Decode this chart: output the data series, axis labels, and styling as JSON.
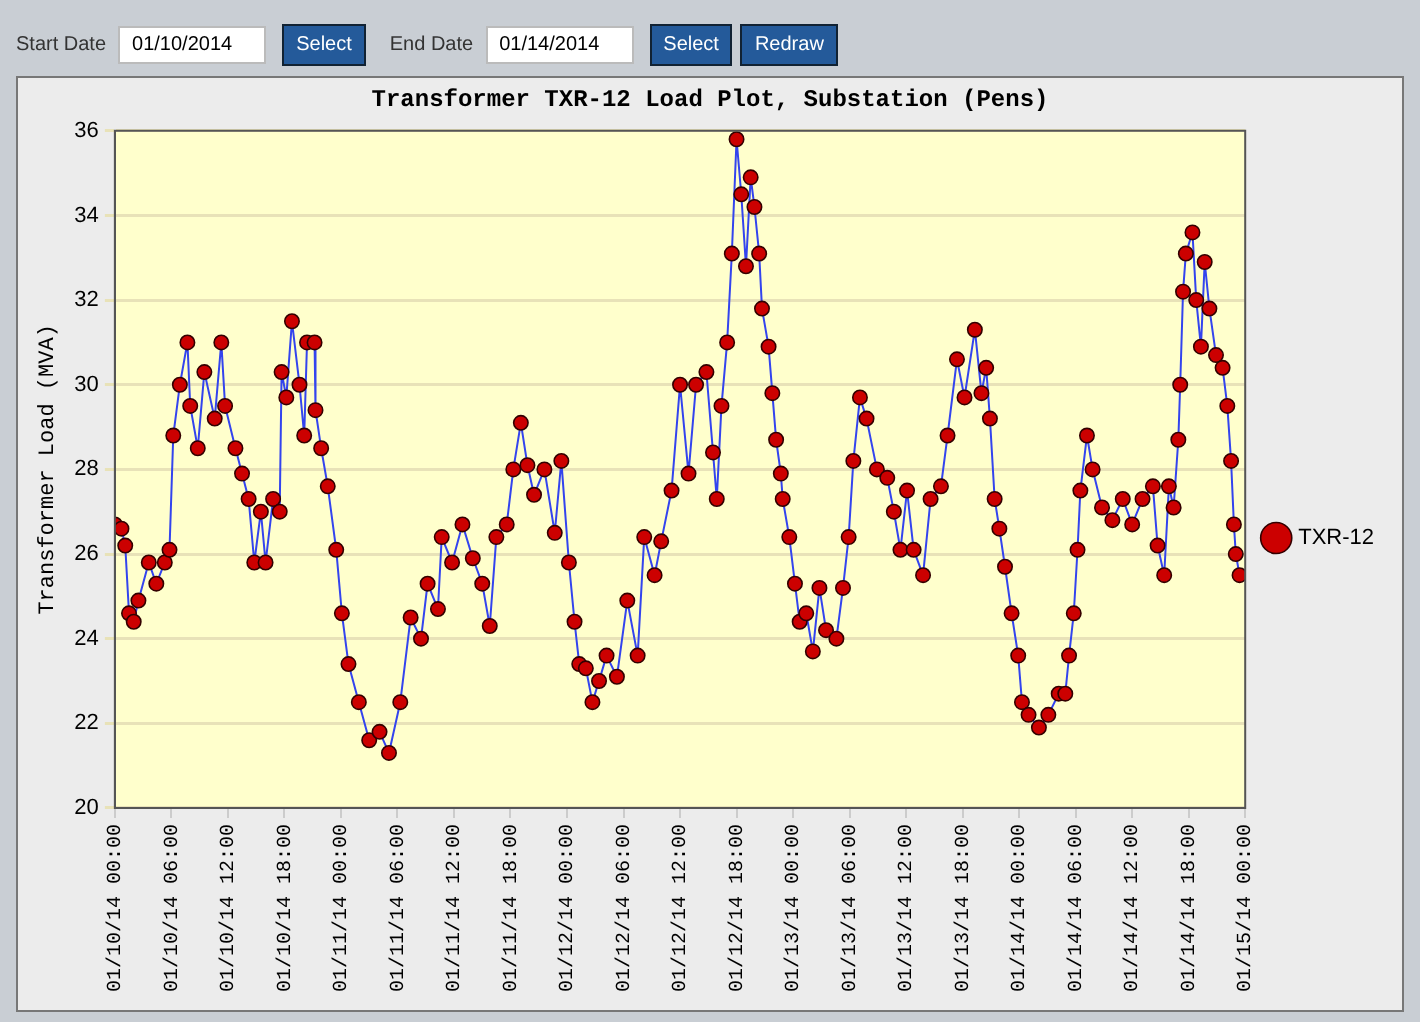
{
  "chart_data": {
    "type": "line",
    "title": "Transformer TXR-12 Load Plot, Substation (Pens)",
    "ylabel": "Transformer Load (MVA)",
    "annotations": [
      "Start Date",
      "01/10/2014",
      "Select",
      "End Date",
      "01/14/2014",
      "Select",
      "Redraw"
    ],
    "x": [
      "2014-01-10T00:00",
      "2014-01-10T00:42",
      "2014-01-10T01:06",
      "2014-01-10T01:30",
      "2014-01-10T02:00",
      "2014-01-10T02:30",
      "2014-01-10T03:36",
      "2014-01-10T04:24",
      "2014-01-10T05:18",
      "2014-01-10T05:48",
      "2014-01-10T06:12",
      "2014-01-10T06:54",
      "2014-01-10T07:42",
      "2014-01-10T08:00",
      "2014-01-10T08:48",
      "2014-01-10T09:30",
      "2014-01-10T10:36",
      "2014-01-10T11:18",
      "2014-01-10T11:42",
      "2014-01-10T12:48",
      "2014-01-10T13:30",
      "2014-01-10T14:12",
      "2014-01-10T14:48",
      "2014-01-10T15:30",
      "2014-01-10T16:00",
      "2014-01-10T16:48",
      "2014-01-10T17:30",
      "2014-01-10T17:42",
      "2014-01-10T18:12",
      "2014-01-10T18:48",
      "2014-01-10T19:36",
      "2014-01-10T20:06",
      "2014-01-10T20:24",
      "2014-01-10T21:12",
      "2014-01-10T21:18",
      "2014-01-10T21:54",
      "2014-01-10T22:36",
      "2014-01-10T23:30",
      "2014-01-11T00:06",
      "2014-01-11T00:48",
      "2014-01-11T01:54",
      "2014-01-11T03:00",
      "2014-01-11T04:06",
      "2014-01-11T05:06",
      "2014-01-11T06:18",
      "2014-01-11T07:24",
      "2014-01-11T08:30",
      "2014-01-11T09:12",
      "2014-01-11T10:18",
      "2014-01-11T10:42",
      "2014-01-11T11:48",
      "2014-01-11T12:54",
      "2014-01-11T14:00",
      "2014-01-11T15:00",
      "2014-01-11T15:48",
      "2014-01-11T16:30",
      "2014-01-11T17:36",
      "2014-01-11T18:18",
      "2014-01-11T19:06",
      "2014-01-11T19:48",
      "2014-01-11T20:30",
      "2014-01-11T21:36",
      "2014-01-11T22:42",
      "2014-01-11T23:24",
      "2014-01-12T00:12",
      "2014-01-12T00:48",
      "2014-01-12T01:18",
      "2014-01-12T02:00",
      "2014-01-12T02:42",
      "2014-01-12T03:24",
      "2014-01-12T04:12",
      "2014-01-12T05:18",
      "2014-01-12T06:24",
      "2014-01-12T07:30",
      "2014-01-12T08:12",
      "2014-01-12T09:18",
      "2014-01-12T10:00",
      "2014-01-12T11:06",
      "2014-01-12T12:00",
      "2014-01-12T12:54",
      "2014-01-12T13:42",
      "2014-01-12T14:48",
      "2014-01-12T15:30",
      "2014-01-12T15:54",
      "2014-01-12T16:24",
      "2014-01-12T17:00",
      "2014-01-12T17:30",
      "2014-01-12T18:00",
      "2014-01-12T18:30",
      "2014-01-12T19:00",
      "2014-01-12T19:30",
      "2014-01-12T19:54",
      "2014-01-12T20:24",
      "2014-01-12T20:42",
      "2014-01-12T21:24",
      "2014-01-12T21:48",
      "2014-01-12T22:12",
      "2014-01-12T22:42",
      "2014-01-12T22:54",
      "2014-01-12T23:36",
      "2014-01-13T00:12",
      "2014-01-13T00:42",
      "2014-01-13T01:24",
      "2014-01-13T02:06",
      "2014-01-13T02:48",
      "2014-01-13T03:30",
      "2014-01-13T04:36",
      "2014-01-13T05:18",
      "2014-01-13T05:54",
      "2014-01-13T06:24",
      "2014-01-13T07:06",
      "2014-01-13T07:48",
      "2014-01-13T08:54",
      "2014-01-13T10:00",
      "2014-01-13T10:42",
      "2014-01-13T11:24",
      "2014-01-13T12:06",
      "2014-01-13T12:48",
      "2014-01-13T13:48",
      "2014-01-13T14:36",
      "2014-01-13T15:42",
      "2014-01-13T16:24",
      "2014-01-13T17:24",
      "2014-01-13T18:12",
      "2014-01-13T19:18",
      "2014-01-13T20:00",
      "2014-01-13T20:30",
      "2014-01-13T20:54",
      "2014-01-13T21:24",
      "2014-01-13T21:54",
      "2014-01-13T22:30",
      "2014-01-13T23:12",
      "2014-01-13T23:54",
      "2014-01-14T00:18",
      "2014-01-14T01:00",
      "2014-01-14T02:06",
      "2014-01-14T03:06",
      "2014-01-14T04:12",
      "2014-01-14T04:54",
      "2014-01-14T05:18",
      "2014-01-14T05:48",
      "2014-01-14T06:12",
      "2014-01-14T06:30",
      "2014-01-14T07:12",
      "2014-01-14T07:48",
      "2014-01-14T08:48",
      "2014-01-14T09:54",
      "2014-01-14T11:00",
      "2014-01-14T12:00",
      "2014-01-14T13:06",
      "2014-01-14T14:12",
      "2014-01-14T14:42",
      "2014-01-14T15:24",
      "2014-01-14T15:54",
      "2014-01-14T16:24",
      "2014-01-14T16:54",
      "2014-01-14T17:06",
      "2014-01-14T17:24",
      "2014-01-14T17:42",
      "2014-01-14T18:24",
      "2014-01-14T18:48",
      "2014-01-14T19:18",
      "2014-01-14T19:42",
      "2014-01-14T20:12",
      "2014-01-14T20:54",
      "2014-01-14T21:36",
      "2014-01-14T22:06",
      "2014-01-14T22:30",
      "2014-01-14T22:48",
      "2014-01-14T23:00",
      "2014-01-14T23:24"
    ],
    "series": [
      {
        "name": "TXR-12",
        "color": "#cc0000",
        "values": [
          26.7,
          26.6,
          26.2,
          24.6,
          24.4,
          24.9,
          25.8,
          25.3,
          25.8,
          26.1,
          28.8,
          30.0,
          31.0,
          29.5,
          28.5,
          30.3,
          29.2,
          31.0,
          29.5,
          28.5,
          27.9,
          27.3,
          25.8,
          27.0,
          25.8,
          27.3,
          27.0,
          30.3,
          29.7,
          31.5,
          30.0,
          28.8,
          31.0,
          31.0,
          29.4,
          28.5,
          27.6,
          26.1,
          24.6,
          23.4,
          22.5,
          21.6,
          21.8,
          21.3,
          22.5,
          24.5,
          24.0,
          25.3,
          24.7,
          26.4,
          25.8,
          26.7,
          25.9,
          25.3,
          24.3,
          26.4,
          26.7,
          28.0,
          29.1,
          28.1,
          27.4,
          28.0,
          26.5,
          28.2,
          25.8,
          24.4,
          23.4,
          23.3,
          22.5,
          23.0,
          23.6,
          23.1,
          24.9,
          23.6,
          26.4,
          25.5,
          26.3,
          27.5,
          30.0,
          27.9,
          30.0,
          30.3,
          28.4,
          27.3,
          29.5,
          31.0,
          33.1,
          35.8,
          34.5,
          32.8,
          34.9,
          34.2,
          33.1,
          31.8,
          30.9,
          29.8,
          28.7,
          27.9,
          27.3,
          26.4,
          25.3,
          24.4,
          24.6,
          23.7,
          25.2,
          24.2,
          24.0,
          25.2,
          26.4,
          28.2,
          29.7,
          29.2,
          28.0,
          27.8,
          27.0,
          26.1,
          27.5,
          26.1,
          25.5,
          27.3,
          27.6,
          28.8,
          30.6,
          29.7,
          31.3,
          29.8,
          30.4,
          29.2,
          27.3,
          26.6,
          25.7,
          24.6,
          23.6,
          22.5,
          22.2,
          21.9,
          22.2,
          22.7,
          22.7,
          23.6,
          24.6,
          26.1,
          27.5,
          28.8,
          28.0,
          27.1,
          26.8,
          27.3,
          26.7,
          27.3,
          27.6,
          26.2,
          25.5,
          27.6,
          27.1,
          28.7,
          30.0,
          32.2,
          33.1,
          33.6,
          32.0,
          30.9,
          32.9,
          31.8,
          30.7,
          30.4,
          29.5,
          28.2,
          26.7,
          26.0,
          25.5
        ]
      }
    ],
    "xlim": [
      "2014-01-10T00:00",
      "2014-01-15T00:00"
    ],
    "xticks": [
      {
        "value": "2014-01-10T00:00",
        "label": "01/10/14 00:00"
      },
      {
        "value": "2014-01-10T06:00",
        "label": "01/10/14 06:00"
      },
      {
        "value": "2014-01-10T12:00",
        "label": "01/10/14 12:00"
      },
      {
        "value": "2014-01-10T18:00",
        "label": "01/10/14 18:00"
      },
      {
        "value": "2014-01-11T00:00",
        "label": "01/11/14 00:00"
      },
      {
        "value": "2014-01-11T06:00",
        "label": "01/11/14 06:00"
      },
      {
        "value": "2014-01-11T12:00",
        "label": "01/11/14 12:00"
      },
      {
        "value": "2014-01-11T18:00",
        "label": "01/11/14 18:00"
      },
      {
        "value": "2014-01-12T00:00",
        "label": "01/12/14 00:00"
      },
      {
        "value": "2014-01-12T06:00",
        "label": "01/12/14 06:00"
      },
      {
        "value": "2014-01-12T12:00",
        "label": "01/12/14 12:00"
      },
      {
        "value": "2014-01-12T18:00",
        "label": "01/12/14 18:00"
      },
      {
        "value": "2014-01-13T00:00",
        "label": "01/13/14 00:00"
      },
      {
        "value": "2014-01-13T06:00",
        "label": "01/13/14 06:00"
      },
      {
        "value": "2014-01-13T12:00",
        "label": "01/13/14 12:00"
      },
      {
        "value": "2014-01-13T18:00",
        "label": "01/13/14 18:00"
      },
      {
        "value": "2014-01-14T00:00",
        "label": "01/14/14 00:00"
      },
      {
        "value": "2014-01-14T06:00",
        "label": "01/14/14 06:00"
      },
      {
        "value": "2014-01-14T12:00",
        "label": "01/14/14 12:00"
      },
      {
        "value": "2014-01-14T18:00",
        "label": "01/14/14 18:00"
      },
      {
        "value": "2014-01-15T00:00",
        "label": "01/15/14 00:00"
      }
    ],
    "ylim": [
      20,
      36
    ],
    "yticks": [
      20,
      22,
      24,
      26,
      28,
      30,
      32,
      34,
      36
    ],
    "grid": "y",
    "legend": "right",
    "marker": "circle",
    "line_style": "solid"
  }
}
